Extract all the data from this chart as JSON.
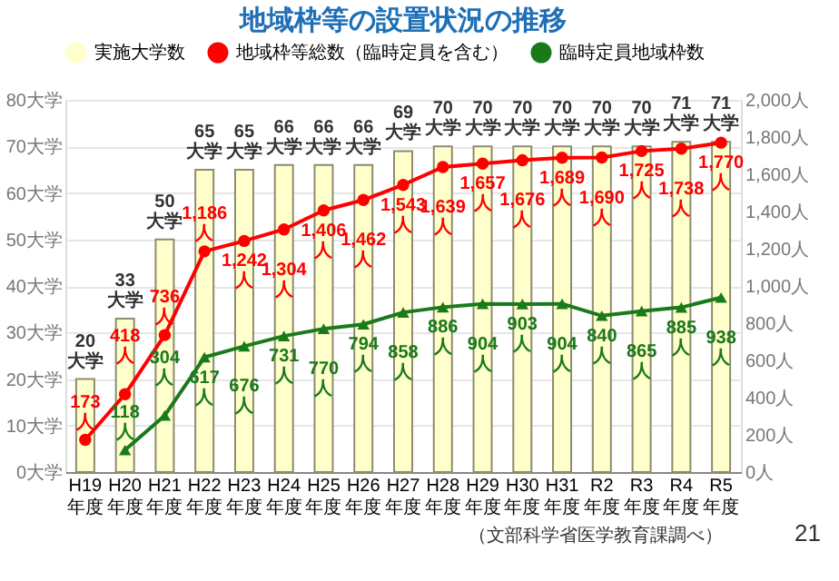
{
  "chart_data": {
    "type": "bar",
    "title": "地域枠等の設置状況の推移",
    "categories": [
      "H19年度",
      "H20年度",
      "H21年度",
      "H22年度",
      "H23年度",
      "H24年度",
      "H25年度",
      "H26年度",
      "H27年度",
      "H28年度",
      "H29年度",
      "H30年度",
      "H31年度",
      "R2年度",
      "R3年度",
      "R4年度",
      "R5年度"
    ],
    "series": [
      {
        "name": "実施大学数",
        "color": "#ffffcc",
        "values": [
          20,
          33,
          50,
          65,
          65,
          66,
          66,
          66,
          69,
          70,
          70,
          70,
          70,
          70,
          70,
          71,
          71
        ],
        "value_labels": [
          "20大学",
          "33大学",
          "50大学",
          "65大学",
          "65大学",
          "66大学",
          "66大学",
          "66大学",
          "69大学",
          "70大学",
          "70大学",
          "70大学",
          "70大学",
          "70大学",
          "70大学",
          "71大学",
          "71大学"
        ]
      },
      {
        "name": "地域枠等総数（臨時定員を含む）",
        "type": "line",
        "axis": "y2",
        "marker": "circle",
        "color": "#ff0000",
        "values": [
          173,
          418,
          736,
          1186,
          1242,
          1304,
          1406,
          1462,
          1543,
          1639,
          1657,
          1676,
          1689,
          1690,
          1725,
          1738,
          1770
        ],
        "value_labels": [
          "173人",
          "418人",
          "736人",
          "1,186人",
          "1,242人",
          "1,304人",
          "1,406人",
          "1,462人",
          "1,543人",
          "1,639人",
          "1,657人",
          "1,676人",
          "1,689人",
          "1,690人",
          "1,725人",
          "1,738人",
          "1,770人"
        ]
      },
      {
        "name": "臨時定員地域枠数",
        "type": "line",
        "axis": "y2",
        "marker": "triangle",
        "color": "#1a7a1a",
        "values": [
          null,
          118,
          304,
          617,
          676,
          731,
          770,
          794,
          858,
          886,
          904,
          903,
          904,
          840,
          865,
          885,
          938
        ],
        "value_labels": [
          null,
          "118人",
          "304人",
          "617人",
          "676人",
          "731人",
          "770人",
          "794人",
          "858人",
          "886人",
          "904人",
          "903人",
          "904人",
          "840人",
          "865人",
          "885人",
          "938人"
        ]
      }
    ],
    "ylim": [
      0,
      80
    ],
    "yticks": [
      {
        "value": 0,
        "label": "0大学"
      },
      {
        "value": 10,
        "label": "10大学"
      },
      {
        "value": 20,
        "label": "20大学"
      },
      {
        "value": 30,
        "label": "30大学"
      },
      {
        "value": 40,
        "label": "40大学"
      },
      {
        "value": 50,
        "label": "50大学"
      },
      {
        "value": 60,
        "label": "60大学"
      },
      {
        "value": 70,
        "label": "70大学"
      },
      {
        "value": 80,
        "label": "80大学"
      }
    ],
    "y2lim": [
      0,
      2000
    ],
    "y2ticks": [
      {
        "value": 0,
        "label": "0人"
      },
      {
        "value": 200,
        "label": "200人"
      },
      {
        "value": 400,
        "label": "400人"
      },
      {
        "value": 600,
        "label": "600人"
      },
      {
        "value": 800,
        "label": "800人"
      },
      {
        "value": 1000,
        "label": "1,000人"
      },
      {
        "value": 1200,
        "label": "1,200人"
      },
      {
        "value": 1400,
        "label": "1,400人"
      },
      {
        "value": 1600,
        "label": "1,600人"
      },
      {
        "value": 1800,
        "label": "1,800人"
      },
      {
        "value": 2000,
        "label": "2,000人"
      }
    ],
    "grid": "y",
    "legend": "top",
    "annotations": [
      "（文部科学省医学教育課調べ）",
      "21"
    ]
  }
}
